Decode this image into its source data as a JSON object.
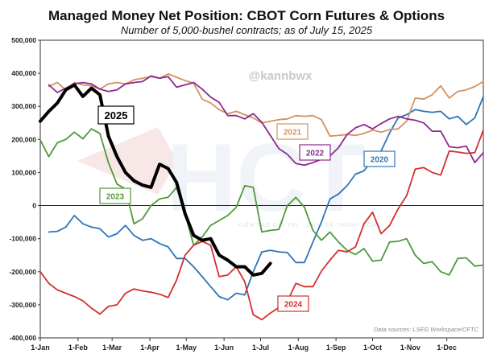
{
  "chart_data": {
    "type": "line",
    "title": "Managed Money Net Position: CBOT Corn Futures & Options",
    "subtitle": "Number of 5,000-bushel contracts; as of July 15, 2025",
    "source": "Data sources: LSEG Workspace/CFTC",
    "handle": "@kannbwx",
    "watermark": {
      "logo": "HCT",
      "text": "KIẾN TẠO GIÁ TRỊ - CHIA SẺ THÀNH CÔNG"
    },
    "xlabel": "",
    "ylabel": "",
    "ylim": [
      -400000,
      500000
    ],
    "yticks": [
      500000,
      400000,
      300000,
      200000,
      100000,
      0,
      -100000,
      -200000,
      -300000,
      -400000
    ],
    "ytick_labels": [
      "500,000",
      "400,000",
      "300,000",
      "200,000",
      "100,000",
      "0",
      "-100,000",
      "-200,000",
      "-300,000",
      "-400,000"
    ],
    "xlim_weeks": [
      0,
      52
    ],
    "xtick_weeks": [
      0,
      4.43,
      8.43,
      12.86,
      17.14,
      21.57,
      25.86,
      30.29,
      34.71,
      39,
      43.43,
      47.71
    ],
    "xtick_labels": [
      "1-Jan",
      "1-Feb",
      "1-Mar",
      "1-Apr",
      "1-May",
      "1-Jun",
      "1-Jul",
      "1-Aug",
      "1-Sep",
      "1-Oct",
      "1-Nov",
      "1-Dec"
    ],
    "grid": false,
    "series": [
      {
        "name": "2020",
        "label": "2020",
        "color": "#2e75b6",
        "points": [
          [
            1,
            -80000
          ],
          [
            2,
            -78000
          ],
          [
            3,
            -65000
          ],
          [
            4,
            -30000
          ],
          [
            5,
            -55000
          ],
          [
            6,
            -65000
          ],
          [
            7,
            -70000
          ],
          [
            8,
            -95000
          ],
          [
            9,
            -85000
          ],
          [
            10,
            -60000
          ],
          [
            11,
            -90000
          ],
          [
            12,
            -105000
          ],
          [
            13,
            -100000
          ],
          [
            14,
            -115000
          ],
          [
            15,
            -125000
          ],
          [
            16,
            -160000
          ],
          [
            17,
            -160000
          ],
          [
            18,
            -185000
          ],
          [
            19,
            -215000
          ],
          [
            20,
            -245000
          ],
          [
            21,
            -275000
          ],
          [
            22,
            -285000
          ],
          [
            23,
            -265000
          ],
          [
            24,
            -270000
          ],
          [
            25,
            -200000
          ],
          [
            26,
            -140000
          ],
          [
            27,
            -135000
          ],
          [
            28,
            -140000
          ],
          [
            29,
            -142000
          ],
          [
            30,
            -172000
          ],
          [
            31,
            -172000
          ],
          [
            32,
            -110000
          ],
          [
            33,
            -50000
          ],
          [
            34,
            20000
          ],
          [
            35,
            35000
          ],
          [
            36,
            60000
          ],
          [
            37,
            95000
          ],
          [
            38,
            105000
          ],
          [
            39,
            140000
          ],
          [
            40,
            165000
          ],
          [
            41,
            220000
          ],
          [
            42,
            265000
          ],
          [
            43,
            275000
          ],
          [
            44,
            290000
          ],
          [
            45,
            285000
          ],
          [
            46,
            282000
          ],
          [
            47,
            285000
          ],
          [
            48,
            262000
          ],
          [
            49,
            270000
          ],
          [
            50,
            245000
          ],
          [
            51,
            265000
          ],
          [
            52,
            330000
          ]
        ]
      },
      {
        "name": "2021",
        "label": "2021",
        "color": "#d4915f",
        "points": [
          [
            1,
            360000
          ],
          [
            2,
            372000
          ],
          [
            3,
            350000
          ],
          [
            4,
            372000
          ],
          [
            5,
            365000
          ],
          [
            6,
            362000
          ],
          [
            7,
            352000
          ],
          [
            8,
            368000
          ],
          [
            9,
            372000
          ],
          [
            10,
            368000
          ],
          [
            11,
            380000
          ],
          [
            12,
            385000
          ],
          [
            13,
            390000
          ],
          [
            14,
            385000
          ],
          [
            15,
            398000
          ],
          [
            16,
            388000
          ],
          [
            17,
            378000
          ],
          [
            18,
            370000
          ],
          [
            19,
            322000
          ],
          [
            20,
            310000
          ],
          [
            21,
            290000
          ],
          [
            22,
            278000
          ],
          [
            23,
            285000
          ],
          [
            24,
            275000
          ],
          [
            25,
            265000
          ],
          [
            26,
            250000
          ],
          [
            27,
            255000
          ],
          [
            28,
            260000
          ],
          [
            29,
            262000
          ],
          [
            30,
            272000
          ],
          [
            31,
            270000
          ],
          [
            32,
            272000
          ],
          [
            33,
            260000
          ],
          [
            34,
            210000
          ],
          [
            35,
            212000
          ],
          [
            36,
            215000
          ],
          [
            37,
            212000
          ],
          [
            38,
            218000
          ],
          [
            39,
            228000
          ],
          [
            40,
            222000
          ],
          [
            41,
            230000
          ],
          [
            42,
            232000
          ],
          [
            43,
            255000
          ],
          [
            44,
            325000
          ],
          [
            45,
            322000
          ],
          [
            46,
            335000
          ],
          [
            47,
            362000
          ],
          [
            48,
            325000
          ],
          [
            49,
            345000
          ],
          [
            50,
            350000
          ],
          [
            51,
            360000
          ],
          [
            52,
            375000
          ]
        ]
      },
      {
        "name": "2022",
        "label": "2022",
        "color": "#8e2a8e",
        "points": [
          [
            1,
            365000
          ],
          [
            2,
            342000
          ],
          [
            3,
            355000
          ],
          [
            4,
            368000
          ],
          [
            5,
            372000
          ],
          [
            6,
            368000
          ],
          [
            7,
            352000
          ],
          [
            8,
            345000
          ],
          [
            9,
            350000
          ],
          [
            10,
            368000
          ],
          [
            11,
            372000
          ],
          [
            12,
            375000
          ],
          [
            13,
            392000
          ],
          [
            14,
            385000
          ],
          [
            15,
            390000
          ],
          [
            16,
            358000
          ],
          [
            17,
            365000
          ],
          [
            18,
            372000
          ],
          [
            19,
            352000
          ],
          [
            20,
            328000
          ],
          [
            21,
            312000
          ],
          [
            22,
            272000
          ],
          [
            23,
            272000
          ],
          [
            24,
            262000
          ],
          [
            25,
            278000
          ],
          [
            26,
            252000
          ],
          [
            27,
            212000
          ],
          [
            28,
            172000
          ],
          [
            29,
            155000
          ],
          [
            30,
            127000
          ],
          [
            31,
            122000
          ],
          [
            32,
            130000
          ],
          [
            33,
            140000
          ],
          [
            34,
            150000
          ],
          [
            35,
            175000
          ],
          [
            36,
            215000
          ],
          [
            37,
            235000
          ],
          [
            38,
            245000
          ],
          [
            39,
            232000
          ],
          [
            40,
            248000
          ],
          [
            41,
            262000
          ],
          [
            42,
            270000
          ],
          [
            43,
            262000
          ],
          [
            44,
            258000
          ],
          [
            45,
            250000
          ],
          [
            46,
            225000
          ],
          [
            47,
            225000
          ],
          [
            48,
            178000
          ],
          [
            49,
            175000
          ],
          [
            50,
            180000
          ],
          [
            51,
            130000
          ],
          [
            52,
            160000
          ]
        ]
      },
      {
        "name": "2023",
        "label": "2023",
        "color": "#4f9a3a",
        "points": [
          [
            0,
            198000
          ],
          [
            1,
            148000
          ],
          [
            2,
            190000
          ],
          [
            3,
            200000
          ],
          [
            4,
            222000
          ],
          [
            5,
            202000
          ],
          [
            6,
            232000
          ],
          [
            7,
            218000
          ],
          [
            8,
            130000
          ],
          [
            9,
            65000
          ],
          [
            10,
            50000
          ],
          [
            11,
            -55000
          ],
          [
            12,
            -40000
          ],
          [
            13,
            0
          ],
          [
            14,
            20000
          ],
          [
            15,
            25000
          ],
          [
            16,
            55000
          ],
          [
            17,
            -25000
          ],
          [
            18,
            -120000
          ],
          [
            19,
            -95000
          ],
          [
            20,
            -60000
          ],
          [
            21,
            -45000
          ],
          [
            22,
            -30000
          ],
          [
            23,
            -5000
          ],
          [
            24,
            60000
          ],
          [
            25,
            55000
          ],
          [
            26,
            -80000
          ],
          [
            27,
            -75000
          ],
          [
            28,
            -72000
          ],
          [
            29,
            0
          ],
          [
            30,
            25000
          ],
          [
            31,
            -5000
          ],
          [
            32,
            -75000
          ],
          [
            33,
            -105000
          ],
          [
            34,
            -80000
          ],
          [
            35,
            -110000
          ],
          [
            36,
            -135000
          ],
          [
            37,
            -148000
          ],
          [
            38,
            -130000
          ],
          [
            39,
            -168000
          ],
          [
            40,
            -165000
          ],
          [
            41,
            -110000
          ],
          [
            42,
            -108000
          ],
          [
            43,
            -100000
          ],
          [
            44,
            -150000
          ],
          [
            45,
            -175000
          ],
          [
            46,
            -170000
          ],
          [
            47,
            -200000
          ],
          [
            48,
            -210000
          ],
          [
            49,
            -160000
          ],
          [
            50,
            -158000
          ],
          [
            51,
            -183000
          ],
          [
            52,
            -180000
          ]
        ]
      },
      {
        "name": "2024",
        "label": "2024",
        "color": "#d32f2f",
        "points": [
          [
            0,
            -200000
          ],
          [
            1,
            -235000
          ],
          [
            2,
            -255000
          ],
          [
            3,
            -265000
          ],
          [
            4,
            -275000
          ],
          [
            5,
            -288000
          ],
          [
            6,
            -310000
          ],
          [
            7,
            -328000
          ],
          [
            8,
            -305000
          ],
          [
            9,
            -300000
          ],
          [
            10,
            -265000
          ],
          [
            11,
            -252000
          ],
          [
            12,
            -258000
          ],
          [
            13,
            -262000
          ],
          [
            14,
            -268000
          ],
          [
            15,
            -278000
          ],
          [
            16,
            -225000
          ],
          [
            17,
            -150000
          ],
          [
            18,
            -120000
          ],
          [
            19,
            -108000
          ],
          [
            20,
            -120000
          ],
          [
            21,
            -215000
          ],
          [
            22,
            -210000
          ],
          [
            23,
            -185000
          ],
          [
            24,
            -230000
          ],
          [
            25,
            -330000
          ],
          [
            26,
            -345000
          ],
          [
            27,
            -325000
          ],
          [
            28,
            -308000
          ],
          [
            29,
            -290000
          ],
          [
            30,
            -235000
          ],
          [
            31,
            -245000
          ],
          [
            32,
            -245000
          ],
          [
            33,
            -198000
          ],
          [
            34,
            -165000
          ],
          [
            35,
            -135000
          ],
          [
            36,
            -140000
          ],
          [
            37,
            -125000
          ],
          [
            38,
            -55000
          ],
          [
            39,
            -20000
          ],
          [
            40,
            -85000
          ],
          [
            41,
            -60000
          ],
          [
            42,
            -10000
          ],
          [
            43,
            30000
          ],
          [
            44,
            110000
          ],
          [
            45,
            115000
          ],
          [
            46,
            100000
          ],
          [
            47,
            92000
          ],
          [
            48,
            165000
          ],
          [
            49,
            162000
          ],
          [
            50,
            158000
          ],
          [
            51,
            160000
          ],
          [
            52,
            228000
          ]
        ]
      },
      {
        "name": "2025",
        "label": "2025",
        "color": "#000000",
        "points": [
          [
            0,
            255000
          ],
          [
            1,
            285000
          ],
          [
            2,
            310000
          ],
          [
            3,
            350000
          ],
          [
            4,
            365000
          ],
          [
            5,
            330000
          ],
          [
            6,
            355000
          ],
          [
            7,
            335000
          ],
          [
            8,
            210000
          ],
          [
            9,
            148000
          ],
          [
            10,
            100000
          ],
          [
            11,
            75000
          ],
          [
            12,
            62000
          ],
          [
            13,
            55000
          ],
          [
            14,
            125000
          ],
          [
            15,
            112000
          ],
          [
            16,
            70000
          ],
          [
            17,
            -25000
          ],
          [
            18,
            -90000
          ],
          [
            19,
            -105000
          ],
          [
            20,
            -100000
          ],
          [
            21,
            -150000
          ],
          [
            22,
            -165000
          ],
          [
            23,
            -185000
          ],
          [
            24,
            -185000
          ],
          [
            25,
            -210000
          ],
          [
            26,
            -205000
          ],
          [
            27,
            -175000
          ]
        ]
      }
    ]
  }
}
